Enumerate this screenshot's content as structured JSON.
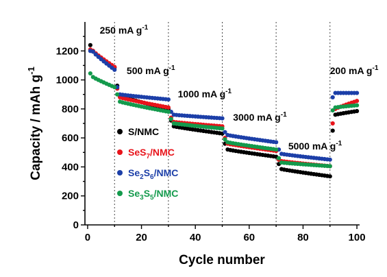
{
  "chart_data": {
    "type": "scatter",
    "xlabel": "Cycle number",
    "ylabel": "Capacity / mAh g",
    "ylabel_sup": "-1",
    "xlim": [
      -1,
      101
    ],
    "ylim": [
      0,
      1400
    ],
    "xticks": [
      0,
      20,
      40,
      60,
      80,
      100
    ],
    "yticks": [
      0,
      200,
      400,
      600,
      800,
      1000,
      1200
    ],
    "dividers": [
      10,
      30,
      50,
      70,
      90
    ],
    "rate_labels": [
      {
        "text": "250 mA g",
        "sup": "-1",
        "x": 4.5,
        "y": 1320
      },
      {
        "text": "500 mA g",
        "sup": "-1",
        "x": 14.5,
        "y": 1040
      },
      {
        "text": "1000 mA g",
        "sup": "-1",
        "x": 33.5,
        "y": 880
      },
      {
        "text": "3000 mA g",
        "sup": "-1",
        "x": 54,
        "y": 720
      },
      {
        "text": "5000 mA g",
        "sup": "-1",
        "x": 74.5,
        "y": 520
      },
      {
        "text": "200 mA g",
        "sup": "-1",
        "x": 90,
        "y": 1040
      }
    ],
    "legend": {
      "placement": "lower-left",
      "entries": [
        {
          "parts": [
            {
              "t": "S/NMC"
            }
          ],
          "color": "#000000"
        },
        {
          "parts": [
            {
              "t": "SeS"
            },
            {
              "t": "7",
              "sub": true
            },
            {
              "t": "/NMC"
            }
          ],
          "color": "#e8141b"
        },
        {
          "parts": [
            {
              "t": "Se"
            },
            {
              "t": "2",
              "sub": true
            },
            {
              "t": "S"
            },
            {
              "t": "6",
              "sub": true
            },
            {
              "t": "/NMC"
            }
          ],
          "color": "#1c3fa8"
        },
        {
          "parts": [
            {
              "t": "Se"
            },
            {
              "t": "3",
              "sub": true
            },
            {
              "t": "S"
            },
            {
              "t": "5",
              "sub": true
            },
            {
              "t": "/NMC"
            }
          ],
          "color": "#139a4c"
        }
      ]
    },
    "series": [
      {
        "color": "#000000",
        "segments": [
          {
            "start": 1,
            "end": 10,
            "first": 1240,
            "from": 1200,
            "to": 1085
          },
          {
            "start": 11,
            "end": 30,
            "first": 960,
            "from": 890,
            "to": 800
          },
          {
            "start": 31,
            "end": 50,
            "first": 720,
            "from": 680,
            "to": 630
          },
          {
            "start": 51,
            "end": 70,
            "first": 560,
            "from": 520,
            "to": 470
          },
          {
            "start": 71,
            "end": 90,
            "first": 420,
            "from": 385,
            "to": 335
          },
          {
            "start": 91,
            "end": 100,
            "first": 650,
            "from": 760,
            "to": 785
          }
        ]
      },
      {
        "color": "#e8141b",
        "segments": [
          {
            "start": 1,
            "end": 10,
            "first": 1210,
            "from": 1200,
            "to": 1090
          },
          {
            "start": 11,
            "end": 30,
            "first": 940,
            "from": 880,
            "to": 810
          },
          {
            "start": 31,
            "end": 50,
            "first": 740,
            "from": 710,
            "to": 680
          },
          {
            "start": 51,
            "end": 70,
            "first": 600,
            "from": 560,
            "to": 510
          },
          {
            "start": 71,
            "end": 90,
            "first": 450,
            "from": 440,
            "to": 405
          },
          {
            "start": 91,
            "end": 100,
            "first": 700,
            "from": 800,
            "to": 855
          }
        ]
      },
      {
        "color": "#1c3fa8",
        "segments": [
          {
            "start": 1,
            "end": 10,
            "first": 1200,
            "from": 1195,
            "to": 1070
          },
          {
            "start": 11,
            "end": 30,
            "first": 950,
            "from": 900,
            "to": 865
          },
          {
            "start": 31,
            "end": 50,
            "first": 780,
            "from": 760,
            "to": 735
          },
          {
            "start": 51,
            "end": 70,
            "first": 640,
            "from": 620,
            "to": 570
          },
          {
            "start": 71,
            "end": 90,
            "first": 520,
            "from": 490,
            "to": 450
          },
          {
            "start": 91,
            "end": 100,
            "first": 880,
            "from": 910,
            "to": 910
          }
        ]
      },
      {
        "color": "#139a4c",
        "segments": [
          {
            "start": 1,
            "end": 10,
            "first": 1045,
            "from": 1020,
            "to": 950
          },
          {
            "start": 11,
            "end": 30,
            "first": 900,
            "from": 850,
            "to": 780
          },
          {
            "start": 31,
            "end": 50,
            "first": 730,
            "from": 700,
            "to": 665
          },
          {
            "start": 51,
            "end": 70,
            "first": 590,
            "from": 570,
            "to": 520
          },
          {
            "start": 71,
            "end": 90,
            "first": 460,
            "from": 430,
            "to": 405
          },
          {
            "start": 91,
            "end": 100,
            "first": 790,
            "from": 810,
            "to": 825
          }
        ]
      }
    ]
  }
}
